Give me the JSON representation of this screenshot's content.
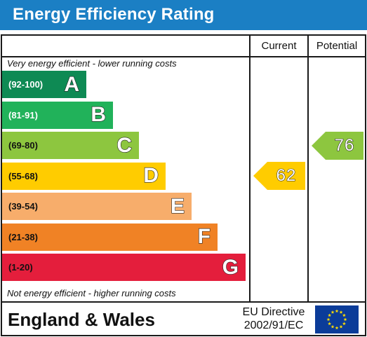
{
  "title": "Energy Efficiency Rating",
  "columns": {
    "current": "Current",
    "potential": "Potential"
  },
  "top_note": "Very energy efficient - lower running costs",
  "bottom_note": "Not energy efficient - higher running costs",
  "footer": {
    "country": "England & Wales",
    "directive_line1": "EU Directive",
    "directive_line2": "2002/91/EC",
    "flag_icon": "eu-flag-icon"
  },
  "chart_data": {
    "type": "bar",
    "bands": [
      {
        "range": "(92-100)",
        "letter": "A",
        "color": "#0e8a54",
        "range_color": "#ffffff"
      },
      {
        "range": "(81-91)",
        "letter": "B",
        "color": "#21b25a",
        "range_color": "#ffffff"
      },
      {
        "range": "(69-80)",
        "letter": "C",
        "color": "#8dc63f",
        "range_color": "#111111"
      },
      {
        "range": "(55-68)",
        "letter": "D",
        "color": "#ffcc00",
        "range_color": "#111111"
      },
      {
        "range": "(39-54)",
        "letter": "E",
        "color": "#f7ad6b",
        "range_color": "#111111"
      },
      {
        "range": "(21-38)",
        "letter": "F",
        "color": "#f08225",
        "range_color": "#111111"
      },
      {
        "range": "(1-20)",
        "letter": "G",
        "color": "#e41e3c",
        "range_color": "#111111"
      }
    ],
    "current": {
      "value": 62,
      "band": "D",
      "color": "#ffcc00"
    },
    "potential": {
      "value": 76,
      "band": "C",
      "color": "#8dc63f"
    }
  }
}
